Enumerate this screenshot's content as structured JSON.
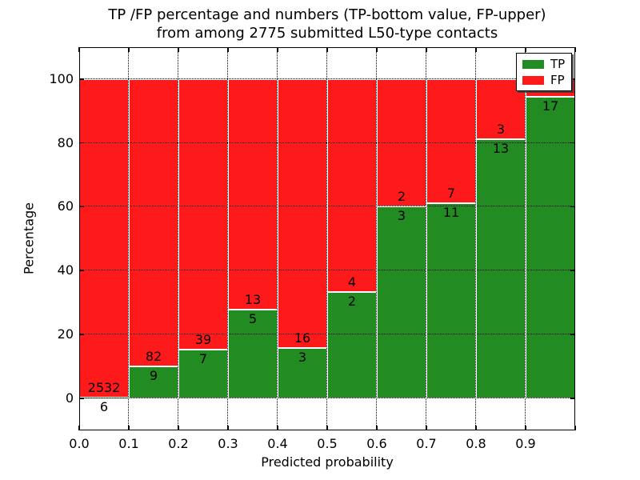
{
  "chart_data": {
    "type": "bar",
    "stacked": true,
    "title_lines": [
      "TP /FP percentage and numbers (TP-bottom value, FP-upper)",
      "from among 2775 submitted L50-type contacts"
    ],
    "title": "TP /FP percentage and numbers (TP-bottom value, FP-upper) from among 2775 submitted L50-type contacts",
    "xlabel": "Predicted probability",
    "ylabel": "Percentage",
    "xlim": [
      0.0,
      1.0
    ],
    "ylim": [
      -10.1,
      110
    ],
    "grid": "dotted",
    "units": "percent-stacked-to-100",
    "series_colors": {
      "tp": "#228b22",
      "fp": "#fe1a1a"
    },
    "legend": {
      "position": "upper right",
      "items": [
        {
          "key": "tp",
          "label": "TP",
          "color": "#228b22"
        },
        {
          "key": "fp",
          "label": "FP",
          "color": "#fe1a1a"
        }
      ]
    },
    "y_ticks": [
      {
        "v": 0,
        "label": "0"
      },
      {
        "v": 20,
        "label": "20"
      },
      {
        "v": 40,
        "label": "40"
      },
      {
        "v": 60,
        "label": "60"
      },
      {
        "v": 80,
        "label": "80"
      },
      {
        "v": 100,
        "label": "100"
      }
    ],
    "x_ticks": [
      {
        "v": 0.0,
        "label": "0.0"
      },
      {
        "v": 0.1,
        "label": "0.1"
      },
      {
        "v": 0.2,
        "label": "0.2"
      },
      {
        "v": 0.3,
        "label": "0.3"
      },
      {
        "v": 0.4,
        "label": "0.4"
      },
      {
        "v": 0.5,
        "label": "0.5"
      },
      {
        "v": 0.6,
        "label": "0.6"
      },
      {
        "v": 0.7,
        "label": "0.7"
      },
      {
        "v": 0.8,
        "label": "0.8"
      },
      {
        "v": 0.9,
        "label": "0.9"
      },
      {
        "v": 1.0,
        "label": ""
      }
    ],
    "bars": [
      {
        "bin": "0.0-0.1",
        "tp": 6,
        "fp": 2532
      },
      {
        "bin": "0.1-0.2",
        "tp": 9,
        "fp": 82
      },
      {
        "bin": "0.2-0.3",
        "tp": 7,
        "fp": 39
      },
      {
        "bin": "0.3-0.4",
        "tp": 5,
        "fp": 13
      },
      {
        "bin": "0.4-0.5",
        "tp": 3,
        "fp": 16
      },
      {
        "bin": "0.5-0.6",
        "tp": 2,
        "fp": 4
      },
      {
        "bin": "0.6-0.7",
        "tp": 3,
        "fp": 2
      },
      {
        "bin": "0.7-0.8",
        "tp": 11,
        "fp": 7
      },
      {
        "bin": "0.8-0.9",
        "tp": 13,
        "fp": 3
      },
      {
        "bin": "0.9-1.0",
        "tp": 17,
        "fp": 1,
        "fp_label_visible": false
      }
    ]
  }
}
